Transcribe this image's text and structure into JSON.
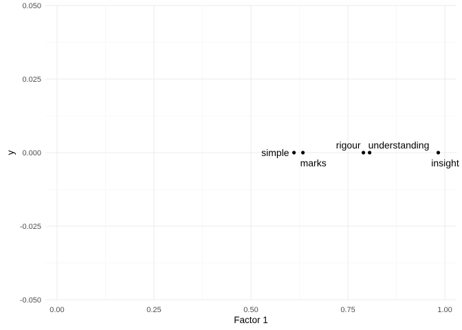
{
  "chart_data": {
    "type": "scatter",
    "title": "",
    "xlabel": "Factor 1",
    "ylabel": "y",
    "xlim": [
      -0.03,
      1.03
    ],
    "ylim": [
      -0.05,
      0.05
    ],
    "x_ticks": [
      0.0,
      0.25,
      0.5,
      0.75,
      1.0
    ],
    "x_tick_labels": [
      "0.00",
      "0.25",
      "0.50",
      "0.75",
      "1.00"
    ],
    "y_ticks": [
      -0.05,
      -0.025,
      0.0,
      0.025,
      0.05
    ],
    "y_tick_labels": [
      "-0.050",
      "-0.025",
      "0.000",
      "0.025",
      "0.050"
    ],
    "grid": true,
    "legend": "none",
    "points": [
      {
        "label": "simple",
        "x": 0.611,
        "y": 0.0,
        "label_pos": "left"
      },
      {
        "label": "marks",
        "x": 0.634,
        "y": 0.0,
        "label_pos": "below-right"
      },
      {
        "label": "rigour",
        "x": 0.79,
        "y": 0.0,
        "label_pos": "above-left"
      },
      {
        "label": "understanding",
        "x": 0.806,
        "y": 0.0,
        "label_pos": "above-right"
      },
      {
        "label": "insight",
        "x": 0.983,
        "y": 0.0,
        "label_pos": "below"
      }
    ]
  }
}
